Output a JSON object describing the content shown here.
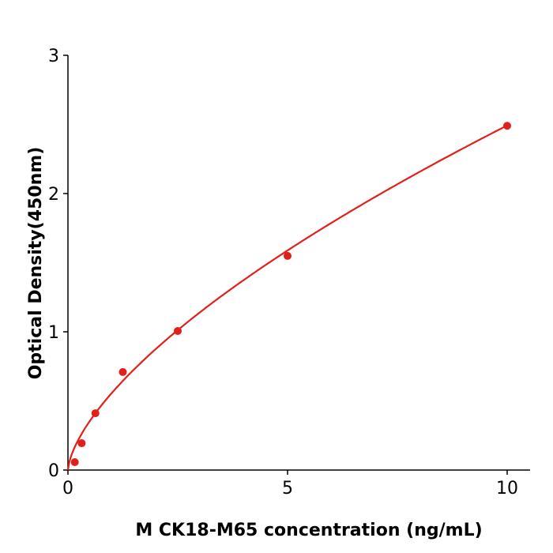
{
  "chart_data": {
    "type": "scatter",
    "title": "",
    "xlabel": "M  CK18-M65 concentration (ng/mL)",
    "ylabel": "Optical Density(450nm)",
    "xlim": [
      0,
      10.5
    ],
    "ylim": [
      0,
      3
    ],
    "x_ticks": [
      "0",
      "5",
      "10"
    ],
    "y_ticks": [
      "0",
      "1",
      "2",
      "3"
    ],
    "grid": false,
    "points": {
      "x": [
        0.156,
        0.3125,
        0.625,
        1.25,
        2.5,
        5,
        10
      ],
      "y": [
        0.057,
        0.194,
        0.411,
        0.709,
        1.006,
        1.549,
        2.49
      ]
    },
    "fit_curve": {
      "type": "power",
      "a": 0.558,
      "b": 0.65
    },
    "color": "#e0201a"
  }
}
